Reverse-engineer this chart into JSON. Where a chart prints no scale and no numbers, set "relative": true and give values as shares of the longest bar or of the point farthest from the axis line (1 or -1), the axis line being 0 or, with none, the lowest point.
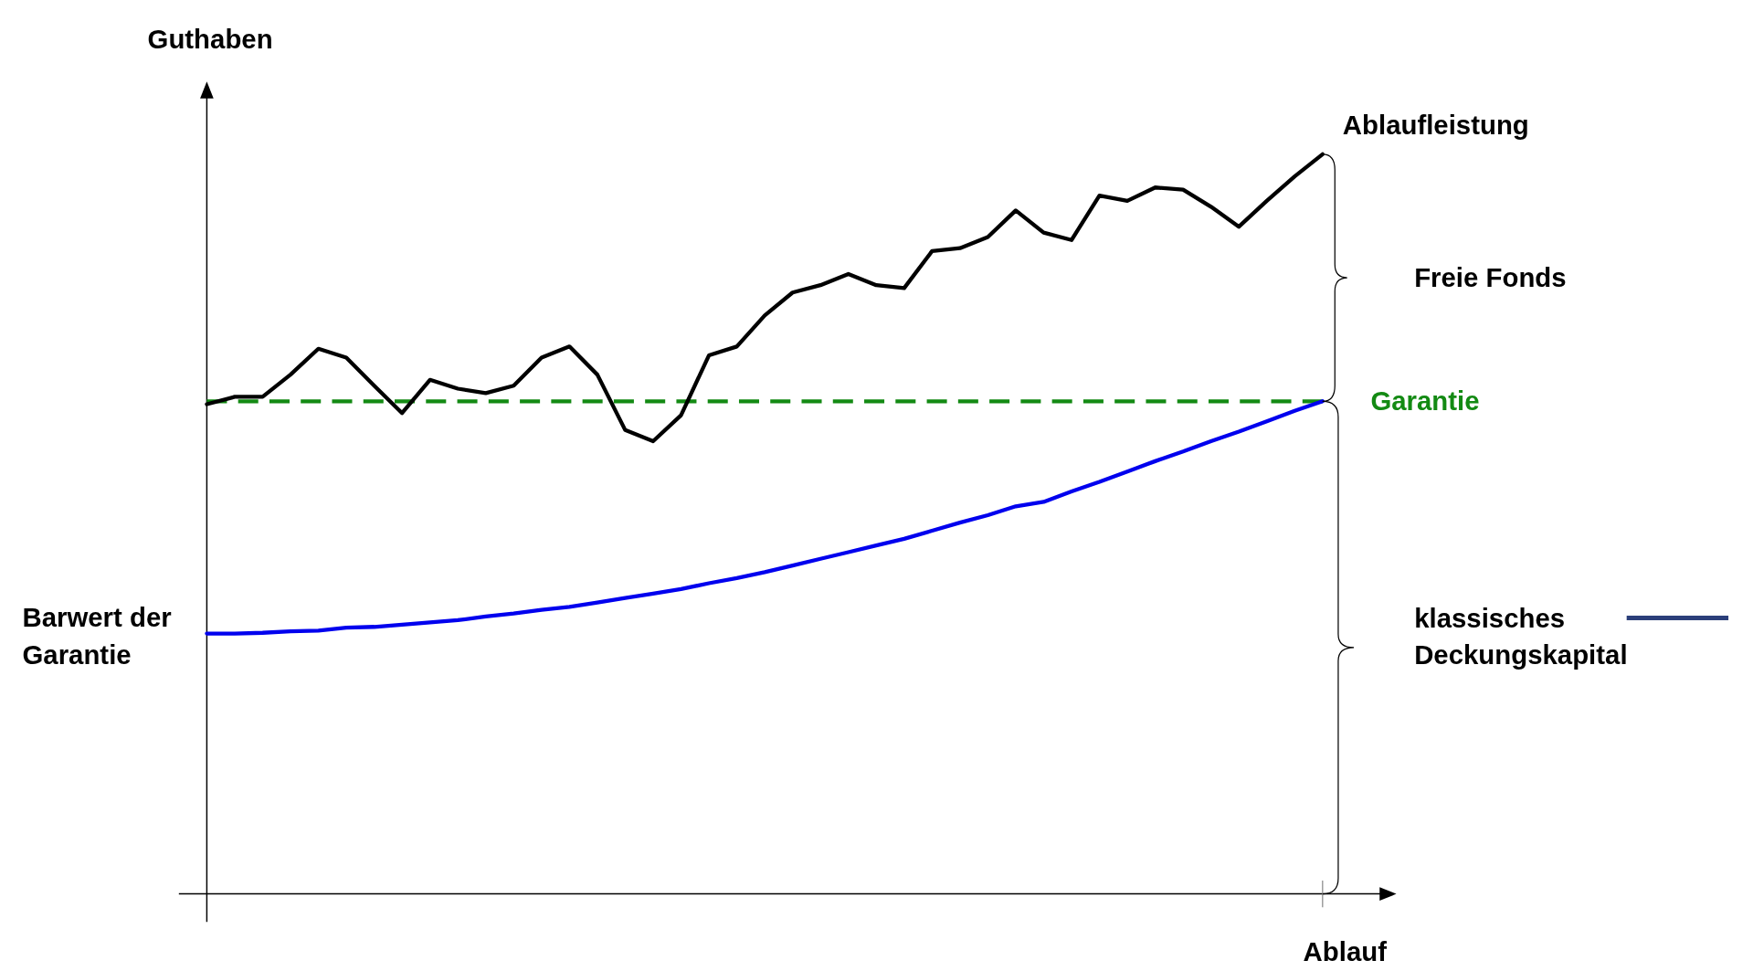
{
  "chart_data": {
    "type": "line",
    "relative": true,
    "ylabel": "Guthaben",
    "xlabel": "Ablauf",
    "categories": [
      null,
      null,
      null,
      null,
      null,
      null,
      null,
      null,
      null,
      null,
      null,
      null,
      null,
      null,
      null,
      null,
      null,
      null,
      null,
      null,
      null,
      null,
      null,
      null,
      null,
      null,
      null,
      null,
      null,
      null,
      null,
      null,
      null,
      null,
      null,
      null,
      null,
      null,
      null,
      null,
      null
    ],
    "series": [
      {
        "color": "#000000",
        "line_style": "solid",
        "values": [
          0.662,
          0.672,
          0.672,
          0.702,
          0.737,
          0.725,
          0.687,
          0.65,
          0.695,
          0.683,
          0.677,
          0.687,
          0.725,
          0.74,
          0.702,
          0.627,
          0.612,
          0.647,
          0.728,
          0.74,
          0.782,
          0.813,
          0.823,
          0.838,
          0.823,
          0.819,
          0.869,
          0.873,
          0.888,
          0.924,
          0.894,
          0.884,
          0.944,
          0.937,
          0.955,
          0.952,
          0.929,
          0.902,
          0.937,
          0.97,
          1.0
        ]
      },
      {
        "color": "#0000ee",
        "line_style": "solid",
        "values": [
          0.352,
          0.352,
          0.353,
          0.355,
          0.356,
          0.36,
          0.361,
          0.364,
          0.367,
          0.37,
          0.375,
          0.379,
          0.384,
          0.388,
          0.394,
          0.4,
          0.406,
          0.412,
          0.42,
          0.427,
          0.435,
          0.444,
          0.453,
          0.462,
          0.471,
          0.48,
          0.491,
          0.502,
          0.512,
          0.524,
          0.53,
          0.544,
          0.557,
          0.571,
          0.585,
          0.598,
          0.612,
          0.625,
          0.639,
          0.653,
          0.666
        ]
      }
    ],
    "ref_lines": [
      {
        "axis": "y",
        "value": 0.666,
        "label": "Garantie",
        "color": "#138a13",
        "line_style": "dashed"
      }
    ],
    "annotations": [
      "Ablaufleistung",
      "Freie Fonds",
      "klassisches Deckungskapital",
      "Barwert der Garantie"
    ]
  }
}
